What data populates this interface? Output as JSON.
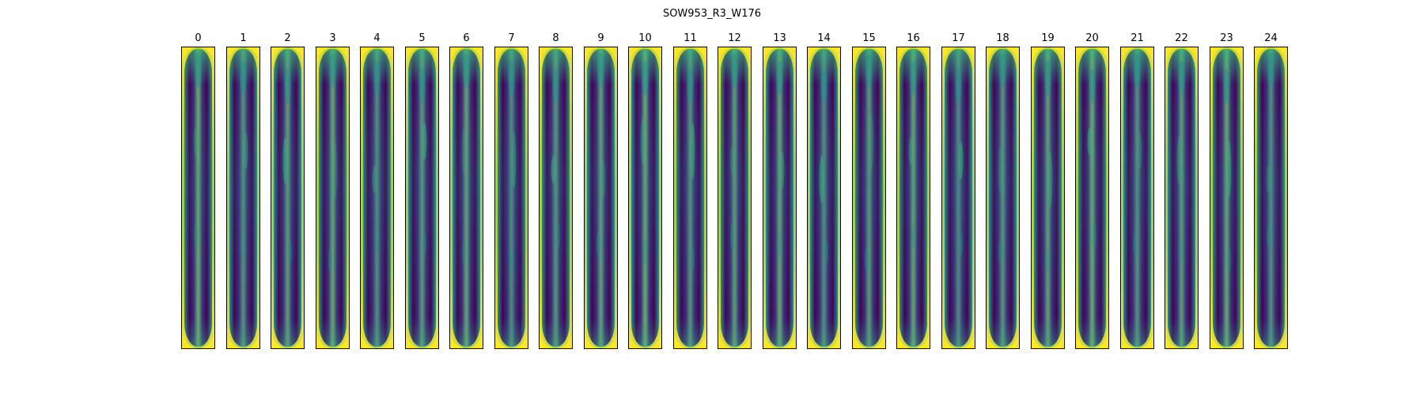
{
  "figure": {
    "title": "SOW953_R3_W176",
    "colormap": {
      "low": "#440154",
      "mid": "#31688e",
      "teal": "#21918c",
      "green": "#35b779",
      "high": "#fde725"
    },
    "panels": [
      {
        "label": "0"
      },
      {
        "label": "1"
      },
      {
        "label": "2"
      },
      {
        "label": "3"
      },
      {
        "label": "4"
      },
      {
        "label": "5"
      },
      {
        "label": "6"
      },
      {
        "label": "7"
      },
      {
        "label": "8"
      },
      {
        "label": "9"
      },
      {
        "label": "10"
      },
      {
        "label": "11"
      },
      {
        "label": "12"
      },
      {
        "label": "13"
      },
      {
        "label": "14"
      },
      {
        "label": "15"
      },
      {
        "label": "16"
      },
      {
        "label": "17"
      },
      {
        "label": "18"
      },
      {
        "label": "19"
      },
      {
        "label": "20"
      },
      {
        "label": "21"
      },
      {
        "label": "22"
      },
      {
        "label": "23"
      },
      {
        "label": "24"
      }
    ]
  }
}
